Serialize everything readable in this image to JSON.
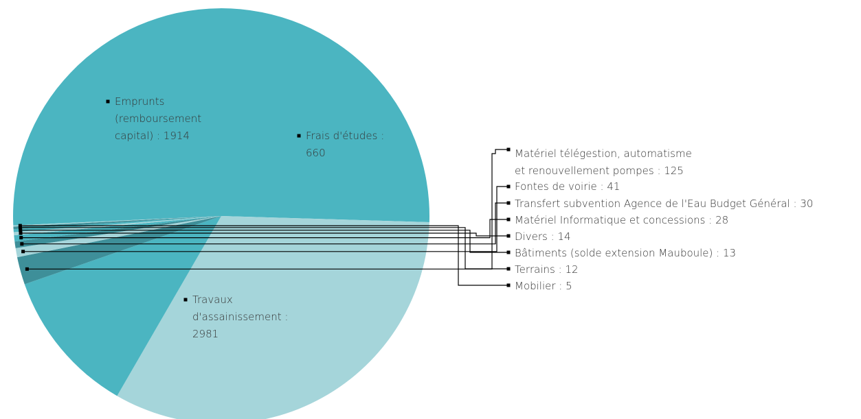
{
  "chart_data": {
    "type": "pie",
    "slices": [
      {
        "label": "Travaux d'assainissement",
        "value": 2981,
        "color": "#4bb5c1"
      },
      {
        "label": "Emprunts (remboursement capital)",
        "value": 1914,
        "color": "#a5d5da"
      },
      {
        "label": "Frais d'études",
        "value": 660,
        "color": "#4bb5c1"
      },
      {
        "label": "Matériel télégestion, automatisme et renouvellement pompes",
        "value": 125,
        "color": "#3e8f99"
      },
      {
        "label": "Fontes de voirie",
        "value": 41,
        "color": "#a5d5da"
      },
      {
        "label": "Transfert subvention Agence de l'Eau Budget Général",
        "value": 30,
        "color": "#3e8f99"
      },
      {
        "label": "Matériel Informatique et concessions",
        "value": 28,
        "color": "#4bb5c1"
      },
      {
        "label": "Divers",
        "value": 14,
        "color": "#a5d5da"
      },
      {
        "label": "Bâtiments (solde extension Mauboule)",
        "value": 13,
        "color": "#4bb5c1"
      },
      {
        "label": "Terrains",
        "value": 12,
        "color": "#3e8f99"
      },
      {
        "label": "Mobilier",
        "value": 5,
        "color": "#a5d5da"
      }
    ]
  },
  "labels": {
    "travaux": [
      "Travaux",
      "d'assainissement :",
      "2981"
    ],
    "emprunts": [
      "Emprunts",
      "(remboursement",
      "capital) : 1914"
    ],
    "frais": [
      "Frais d'études :",
      "660"
    ],
    "materiel_teleg": [
      "Matériel télégestion, automatisme",
      "et renouvellement pompes : 125"
    ],
    "fontes": "Fontes de voirie : 41",
    "transfert": "Transfert subvention Agence de l'Eau Budget Général : 30",
    "materiel_info": "Matériel Informatique et concessions : 28",
    "divers": "Divers : 14",
    "batiments": "Bâtiments (solde extension Mauboule) : 13",
    "terrains": "Terrains : 12",
    "mobilier": "Mobilier : 5"
  }
}
